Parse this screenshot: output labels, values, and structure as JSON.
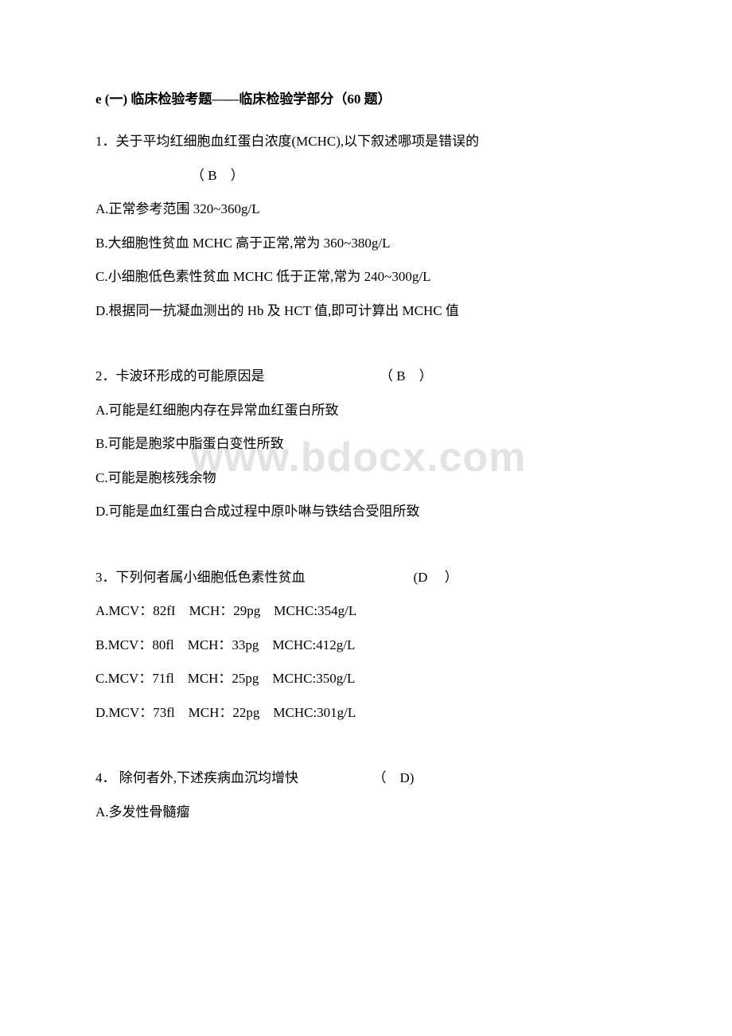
{
  "watermark": "www.bdocx.com",
  "title": "e (一) 临床检验考题——临床检验学部分（60 题）",
  "questions": [
    {
      "number": "1．",
      "text": "关于平均红细胞血红蛋白浓度(MCHC),以下叙述哪项是错误的",
      "answer": "（ B　）",
      "options": [
        "A.正常参考范围 320~360g/L",
        "B.大细胞性贫血 MCHC 高于正常,常为 360~380g/L",
        "C.小细胞低色素性贫血 MCHC 低于正常,常为 240~300g/L",
        "D.根据同一抗凝血测出的 Hb 及 HCT 值,即可计算出 MCHC 值"
      ]
    },
    {
      "number": "2．",
      "text": "卡波环形成的可能原因是　　　　　　　　　（ B　）",
      "answer": "",
      "options": [
        "A.可能是红细胞内存在异常血红蛋白所致",
        "B.可能是胞浆中脂蛋白变性所致",
        "C.可能是胞核残余物",
        "D.可能是血红蛋白合成过程中原卟啉与铁结合受阻所致"
      ]
    },
    {
      "number": "3．",
      "text": "下列何者属小细胞低色素性贫血　　　　　　　　(D　 ）",
      "answer": "",
      "options": [
        "A.MCV：82fI　MCH：29pg　MCHC:354g/L",
        "B.MCV：80fl　MCH：33pg　MCHC:412g/L",
        "C.MCV：71fl　MCH：25pg　MCHC:350g/L",
        "D.MCV：73fl　MCH：22pg　MCHC:301g/L"
      ]
    },
    {
      "number": "4．",
      "text": " 除何者外,下述疾病血沉均增快　　　　　　（　D)",
      "answer": "",
      "options": [
        "A.多发性骨髓瘤"
      ]
    }
  ]
}
